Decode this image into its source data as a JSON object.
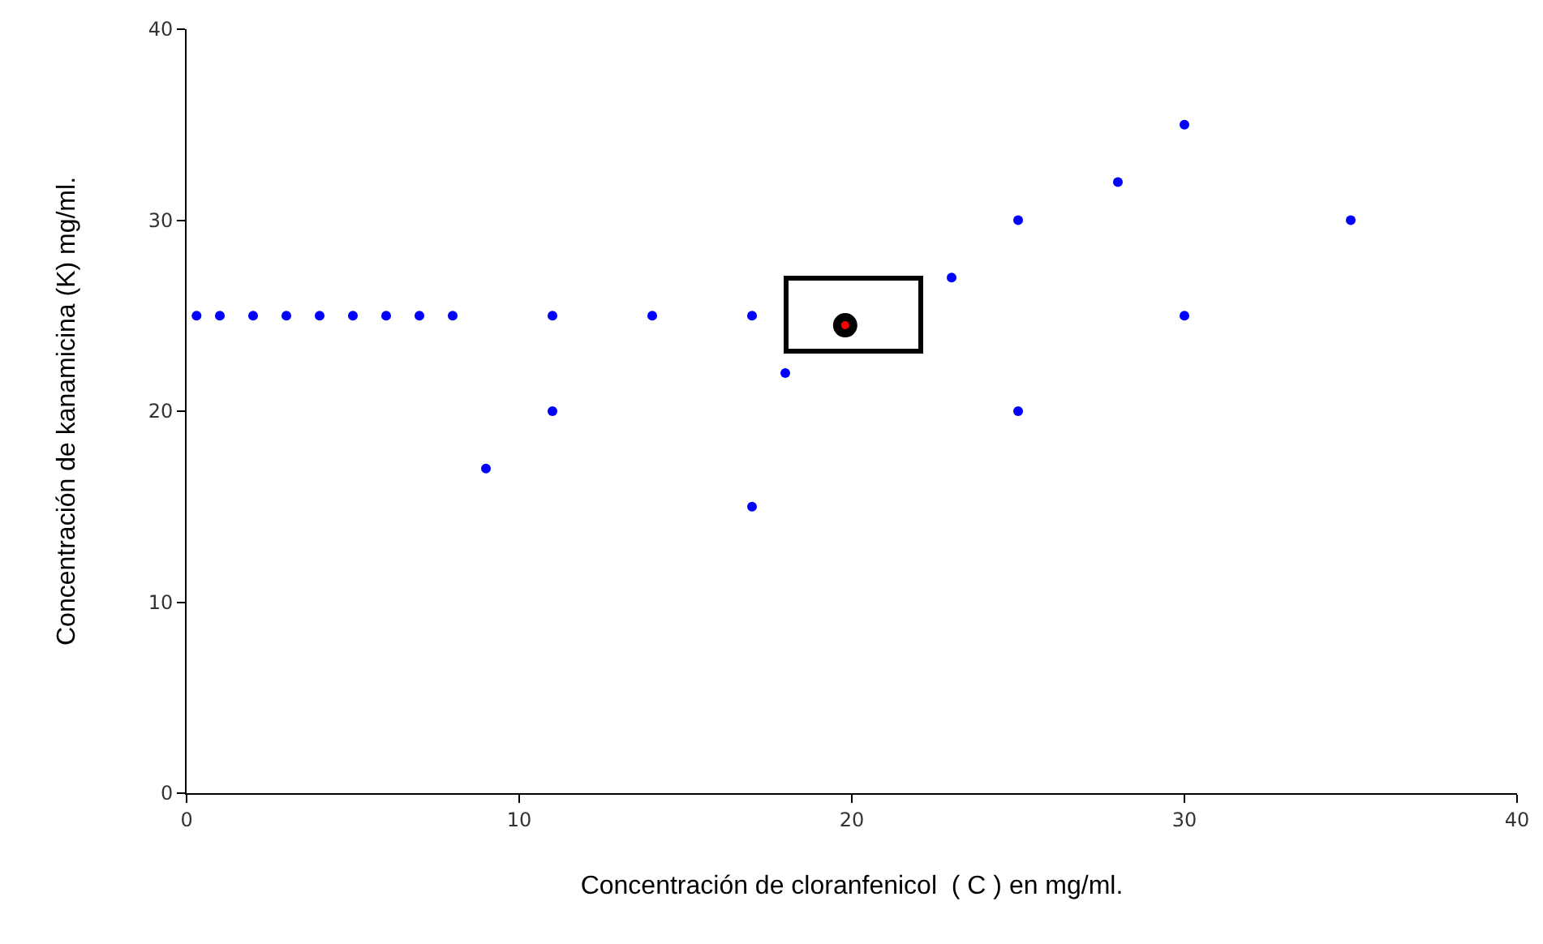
{
  "chart_data": {
    "type": "scatter",
    "xlabel": "Concentración de cloranfenicol  ( C ) en mg/ml.",
    "ylabel": "Concentración de kanamicina (K) mg/ml.",
    "xlim": [
      0,
      40
    ],
    "ylim": [
      0,
      40
    ],
    "xticks": [
      0,
      10,
      20,
      30,
      40
    ],
    "yticks": [
      0,
      10,
      20,
      30,
      40
    ],
    "grid": false,
    "marker": "circle",
    "series": [
      {
        "color": "#0000ff",
        "x": [
          0.3,
          1,
          2,
          3,
          4,
          5,
          6,
          7,
          8,
          11,
          14,
          17,
          9,
          11,
          17,
          18,
          23,
          25,
          25,
          28,
          30,
          30,
          35
        ],
        "values": [
          25,
          25,
          25,
          25,
          25,
          25,
          25,
          25,
          25,
          25,
          25,
          25,
          17,
          20,
          15,
          22,
          27,
          30,
          20,
          32,
          35,
          25,
          30
        ]
      },
      {
        "color": "#ff0000",
        "x": [
          19.8
        ],
        "values": [
          24.5
        ]
      }
    ]
  }
}
